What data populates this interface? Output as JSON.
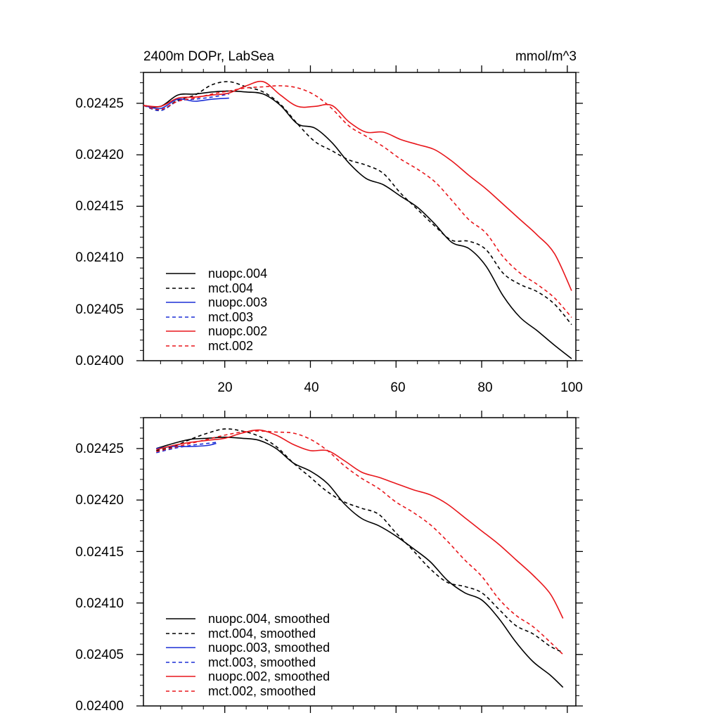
{
  "chart_data": [
    {
      "type": "line",
      "title_left": "2400m DOPr, LabSea",
      "title_right": "mmol/m^3",
      "xlim": [
        1,
        102
      ],
      "ylim": [
        0.024,
        0.02428
      ],
      "xticks": [
        20,
        40,
        60,
        80,
        100
      ],
      "xtick_labels": [
        "20",
        "40",
        "60",
        "80",
        "100"
      ],
      "yticks": [
        0.024,
        0.02405,
        0.0241,
        0.02415,
        0.0242,
        0.02425
      ],
      "ytick_labels": [
        "0.02400",
        "0.02405",
        "0.02410",
        "0.02415",
        "0.02420",
        "0.02425"
      ],
      "series": [
        {
          "name": "nuopc.004",
          "color": "#000000",
          "dashed": false,
          "x": [
            1,
            5,
            9,
            13,
            17,
            21,
            25,
            29,
            33,
            37,
            41,
            45,
            49,
            53,
            57,
            61,
            65,
            69,
            73,
            77,
            81,
            85,
            89,
            93,
            97,
            101
          ],
          "y": [
            0.024248,
            0.024247,
            0.024258,
            0.024259,
            0.024261,
            0.024262,
            0.024261,
            0.024259,
            0.024248,
            0.02423,
            0.024226,
            0.024212,
            0.024192,
            0.024177,
            0.024171,
            0.02416,
            0.024149,
            0.024133,
            0.024115,
            0.024109,
            0.024092,
            0.024063,
            0.024042,
            0.024029,
            0.024015,
            0.024002
          ]
        },
        {
          "name": "mct.004",
          "color": "#000000",
          "dashed": true,
          "x": [
            1,
            5,
            9,
            13,
            17,
            21,
            25,
            29,
            33,
            37,
            41,
            45,
            49,
            53,
            57,
            61,
            65,
            69,
            73,
            77,
            81,
            85,
            89,
            93,
            97,
            101
          ],
          "y": [
            0.024248,
            0.024243,
            0.024253,
            0.024258,
            0.024268,
            0.024271,
            0.024266,
            0.024261,
            0.024249,
            0.02423,
            0.024213,
            0.024204,
            0.024195,
            0.02419,
            0.024182,
            0.024163,
            0.024147,
            0.024131,
            0.024117,
            0.024116,
            0.024108,
            0.024085,
            0.024074,
            0.024067,
            0.024055,
            0.024035
          ]
        },
        {
          "name": "nuopc.003",
          "color": "#1c2fd6",
          "dashed": false,
          "x": [
            1,
            5,
            9,
            13,
            17,
            21
          ],
          "y": [
            0.024248,
            0.024245,
            0.024254,
            0.024252,
            0.024254,
            0.024255
          ]
        },
        {
          "name": "mct.003",
          "color": "#1c2fd6",
          "dashed": true,
          "x": [
            1,
            5,
            9,
            13,
            17,
            21
          ],
          "y": [
            0.024248,
            0.024243,
            0.024252,
            0.024254,
            0.024256,
            0.024259
          ]
        },
        {
          "name": "nuopc.002",
          "color": "#e8161b",
          "dashed": false,
          "x": [
            1,
            5,
            9,
            13,
            17,
            21,
            25,
            29,
            33,
            37,
            41,
            45,
            49,
            53,
            57,
            61,
            65,
            69,
            73,
            77,
            81,
            85,
            89,
            93,
            97,
            101
          ],
          "y": [
            0.024248,
            0.024247,
            0.024255,
            0.024256,
            0.024258,
            0.02426,
            0.024267,
            0.024271,
            0.024258,
            0.024247,
            0.024247,
            0.024248,
            0.024232,
            0.024222,
            0.024222,
            0.024215,
            0.02421,
            0.024205,
            0.024194,
            0.02418,
            0.024167,
            0.024152,
            0.024137,
            0.024122,
            0.024104,
            0.024068
          ]
        },
        {
          "name": "mct.002",
          "color": "#e8161b",
          "dashed": true,
          "x": [
            1,
            5,
            9,
            13,
            17,
            21,
            25,
            29,
            33,
            37,
            41,
            45,
            49,
            53,
            57,
            61,
            65,
            69,
            73,
            77,
            81,
            85,
            89,
            93,
            97,
            101
          ],
          "y": [
            0.024248,
            0.024244,
            0.024252,
            0.024255,
            0.024259,
            0.024262,
            0.024265,
            0.024266,
            0.024267,
            0.024265,
            0.024258,
            0.024245,
            0.024228,
            0.024218,
            0.024208,
            0.024196,
            0.024186,
            0.024174,
            0.024156,
            0.024137,
            0.024124,
            0.024101,
            0.024085,
            0.024074,
            0.024061,
            0.024042
          ]
        }
      ]
    },
    {
      "type": "line",
      "xlim": [
        1,
        102
      ],
      "ylim": [
        0.024,
        0.02428
      ],
      "yticks": [
        0.024,
        0.02405,
        0.0241,
        0.02415,
        0.0242,
        0.02425
      ],
      "ytick_labels": [
        "0.02400",
        "0.02405",
        "0.02410",
        "0.02415",
        "0.02420",
        "0.02425"
      ],
      "xticks": [
        20,
        40,
        60,
        80,
        100
      ],
      "series": [
        {
          "name": "nuopc.004, smoothed",
          "color": "#000000",
          "dashed": false,
          "x": [
            4,
            8,
            12,
            16,
            20,
            24,
            28,
            32,
            36,
            40,
            44,
            48,
            52,
            56,
            60,
            64,
            68,
            72,
            76,
            80,
            84,
            88,
            92,
            96,
            99
          ],
          "y": [
            0.02425,
            0.024255,
            0.024259,
            0.02426,
            0.024261,
            0.02426,
            0.024258,
            0.02425,
            0.024236,
            0.024228,
            0.024216,
            0.024196,
            0.024182,
            0.024175,
            0.024165,
            0.024153,
            0.02414,
            0.024122,
            0.02411,
            0.024103,
            0.024085,
            0.024062,
            0.024043,
            0.02403,
            0.024018
          ]
        },
        {
          "name": "mct.004, smoothed",
          "color": "#000000",
          "dashed": true,
          "x": [
            4,
            8,
            12,
            16,
            20,
            24,
            28,
            32,
            36,
            40,
            44,
            48,
            52,
            56,
            60,
            64,
            68,
            72,
            76,
            80,
            84,
            88,
            92,
            96,
            99
          ],
          "y": [
            0.024248,
            0.024252,
            0.024259,
            0.024265,
            0.024269,
            0.024267,
            0.024262,
            0.024252,
            0.024236,
            0.024222,
            0.024208,
            0.024198,
            0.024192,
            0.024186,
            0.024168,
            0.024151,
            0.024133,
            0.02412,
            0.024116,
            0.02411,
            0.024094,
            0.024078,
            0.02407,
            0.024058,
            0.024052
          ]
        },
        {
          "name": "nuopc.003, smoothed",
          "color": "#1c2fd6",
          "dashed": false,
          "x": [
            4,
            8,
            12,
            16,
            18
          ],
          "y": [
            0.02425,
            0.024252,
            0.024252,
            0.024253,
            0.024255
          ]
        },
        {
          "name": "mct.003, smoothed",
          "color": "#1c2fd6",
          "dashed": true,
          "x": [
            4,
            8,
            12,
            16,
            18
          ],
          "y": [
            0.024246,
            0.02425,
            0.024253,
            0.024255,
            0.024256
          ]
        },
        {
          "name": "nuopc.002, smoothed",
          "color": "#e8161b",
          "dashed": false,
          "x": [
            4,
            8,
            12,
            16,
            20,
            24,
            28,
            32,
            36,
            40,
            44,
            48,
            52,
            56,
            60,
            64,
            68,
            72,
            76,
            80,
            84,
            88,
            92,
            96,
            99
          ],
          "y": [
            0.024249,
            0.024253,
            0.024256,
            0.024258,
            0.02426,
            0.024265,
            0.024268,
            0.024263,
            0.024254,
            0.024248,
            0.024248,
            0.024238,
            0.024227,
            0.024222,
            0.024216,
            0.02421,
            0.024205,
            0.024196,
            0.024183,
            0.02417,
            0.024157,
            0.024142,
            0.024127,
            0.024109,
            0.024085
          ]
        },
        {
          "name": "mct.002, smoothed",
          "color": "#e8161b",
          "dashed": true,
          "x": [
            4,
            8,
            12,
            16,
            20,
            24,
            28,
            32,
            36,
            40,
            44,
            48,
            52,
            56,
            60,
            64,
            68,
            72,
            76,
            80,
            84,
            88,
            92,
            96,
            99
          ],
          "y": [
            0.024247,
            0.024251,
            0.024255,
            0.024259,
            0.024263,
            0.024266,
            0.024267,
            0.024266,
            0.024265,
            0.024259,
            0.024248,
            0.024233,
            0.024221,
            0.024211,
            0.024198,
            0.024188,
            0.024176,
            0.02416,
            0.024142,
            0.024126,
            0.024104,
            0.024088,
            0.024077,
            0.024062,
            0.02405
          ]
        }
      ]
    }
  ]
}
